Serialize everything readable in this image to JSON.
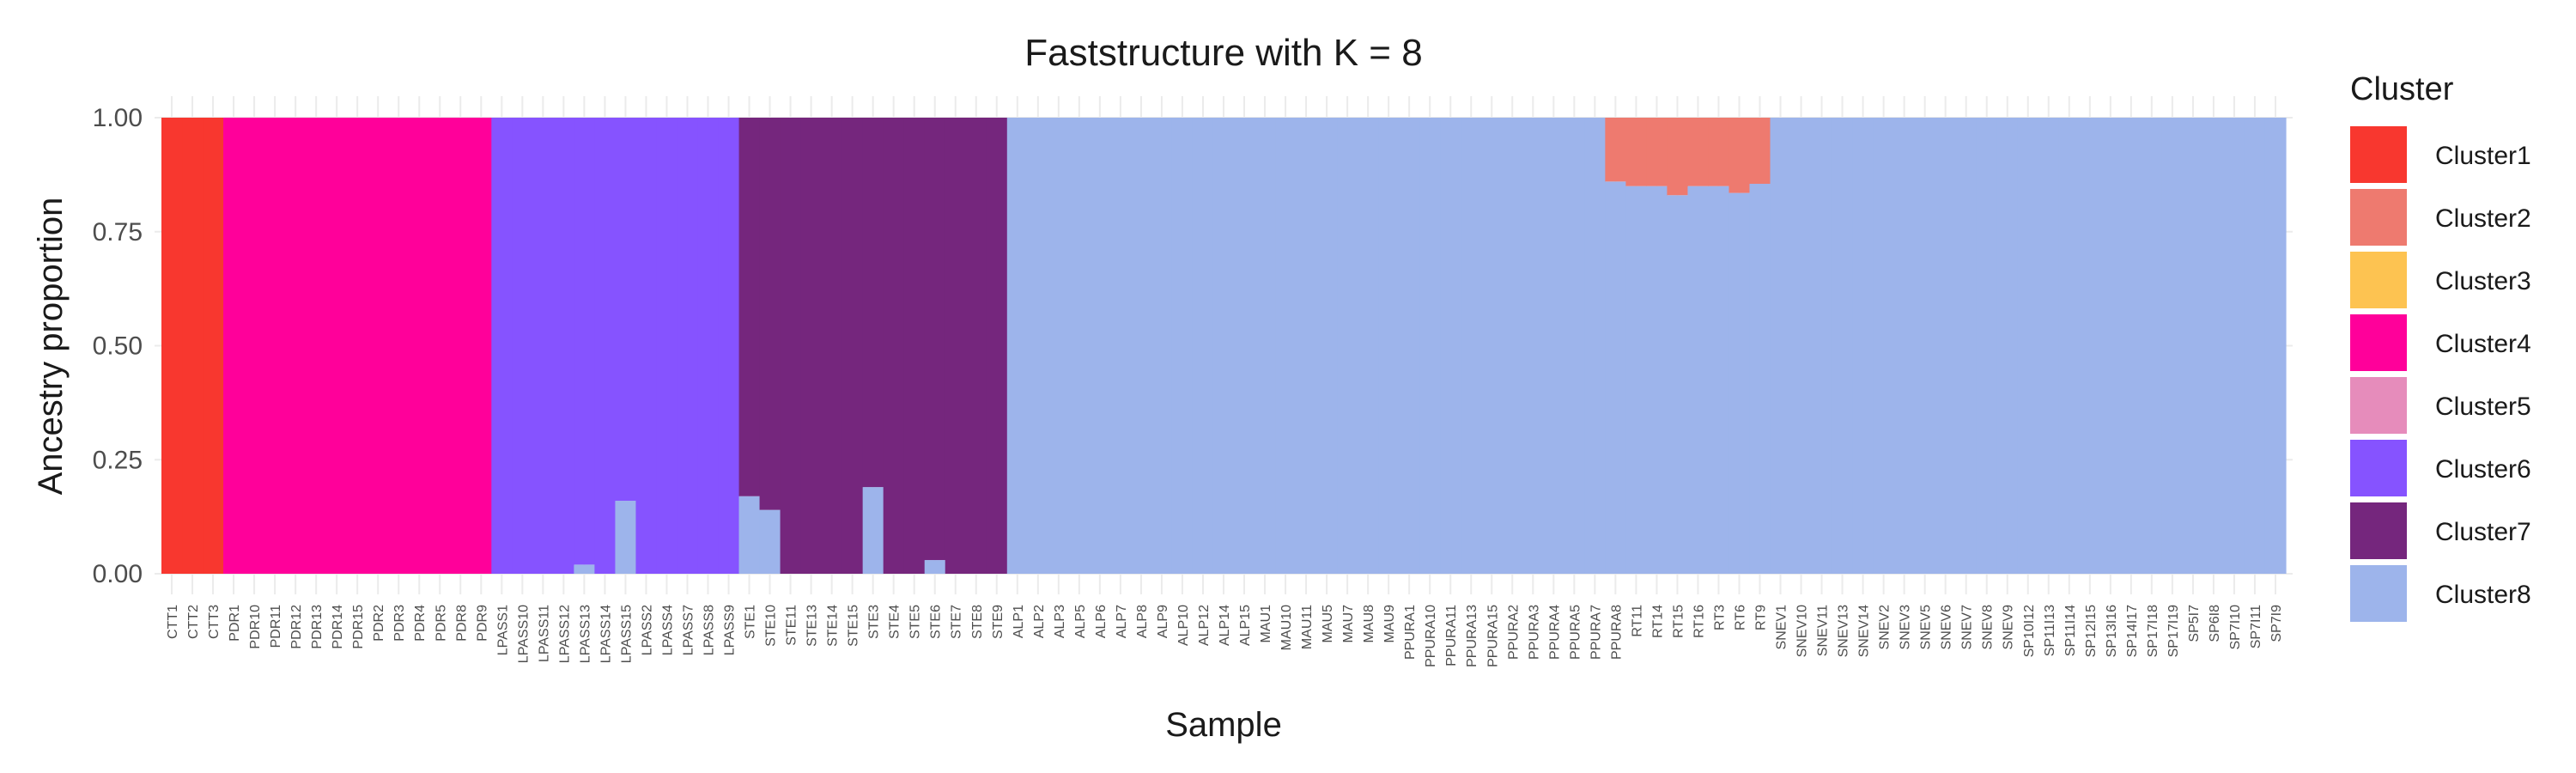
{
  "chart_data": {
    "type": "bar",
    "stacked": true,
    "title": "Faststructure with K = 8",
    "xlabel": "Sample",
    "ylabel": "Ancestry proportion",
    "ylim": [
      0,
      1
    ],
    "yticks": [
      "0.00",
      "0.25",
      "0.50",
      "0.75",
      "1.00"
    ],
    "grid": true,
    "legend": {
      "title": "Cluster",
      "position": "right",
      "entries": [
        {
          "name": "Cluster1",
          "color": "#F8372F"
        },
        {
          "name": "Cluster2",
          "color": "#EE7A6F"
        },
        {
          "name": "Cluster3",
          "color": "#FDC351"
        },
        {
          "name": "Cluster4",
          "color": "#FF009A"
        },
        {
          "name": "Cluster5",
          "color": "#E68CBB"
        },
        {
          "name": "Cluster6",
          "color": "#8653FF"
        },
        {
          "name": "Cluster7",
          "color": "#75267D"
        },
        {
          "name": "Cluster8",
          "color": "#9DB4EB"
        }
      ]
    },
    "categories": [
      "CTT1",
      "CTT2",
      "CTT3",
      "PDR1",
      "PDR10",
      "PDR11",
      "PDR12",
      "PDR13",
      "PDR14",
      "PDR15",
      "PDR2",
      "PDR3",
      "PDR4",
      "PDR5",
      "PDR8",
      "PDR9",
      "LPASS1",
      "LPASS10",
      "LPASS11",
      "LPASS12",
      "LPASS13",
      "LPASS14",
      "LPASS15",
      "LPASS2",
      "LPASS4",
      "LPASS7",
      "LPASS8",
      "LPASS9",
      "STE1",
      "STE10",
      "STE11",
      "STE13",
      "STE14",
      "STE15",
      "STE3",
      "STE4",
      "STE5",
      "STE6",
      "STE7",
      "STE8",
      "STE9",
      "ALP1",
      "ALP2",
      "ALP3",
      "ALP5",
      "ALP6",
      "ALP7",
      "ALP8",
      "ALP9",
      "ALP10",
      "ALP12",
      "ALP14",
      "ALP15",
      "MAU1",
      "MAU10",
      "MAU11",
      "MAU5",
      "MAU7",
      "MAU8",
      "MAU9",
      "PPURA1",
      "PPURA10",
      "PPURA11",
      "PPURA13",
      "PPURA15",
      "PPURA2",
      "PPURA3",
      "PPURA4",
      "PPURA5",
      "PPURA7",
      "PPURA8",
      "RT11",
      "RT14",
      "RT15",
      "RT16",
      "RT3",
      "RT6",
      "RT9",
      "SNEV1",
      "SNEV10",
      "SNEV11",
      "SNEV13",
      "SNEV14",
      "SNEV2",
      "SNEV3",
      "SNEV5",
      "SNEV6",
      "SNEV7",
      "SNEV8",
      "SNEV9",
      "SP10I12",
      "SP11I13",
      "SP11I14",
      "SP12I15",
      "SP13I16",
      "SP14I17",
      "SP17I18",
      "SP17I19",
      "SP5I7",
      "SP6I8",
      "SP7I10",
      "SP7I11",
      "SP7I9"
    ],
    "groups": [
      {
        "samples": 3,
        "series": "Cluster1",
        "value": 1.0
      },
      {
        "samples": 13,
        "series": "Cluster4",
        "value": 1.0
      },
      {
        "samples": 12,
        "series": "Cluster6",
        "value": 1.0,
        "cluster8": [
          0,
          0,
          0,
          0,
          0.02,
          0,
          0.16,
          0,
          0,
          0,
          0,
          0
        ]
      },
      {
        "samples": 13,
        "series": "Cluster7",
        "value": 1.0,
        "cluster8": [
          0.17,
          0.14,
          0,
          0,
          0,
          0,
          0.19,
          0,
          0,
          0.03,
          0,
          0,
          0
        ]
      },
      {
        "samples": 29,
        "series": "Cluster8",
        "value": 1.0
      },
      {
        "samples": 8,
        "series": "Cluster2",
        "cluster8": [
          0.86,
          0.85,
          0.85,
          0.83,
          0.85,
          0.85,
          0.835,
          0.855
        ]
      },
      {
        "samples": 25,
        "series": "Cluster8",
        "value": 1.0
      }
    ]
  }
}
